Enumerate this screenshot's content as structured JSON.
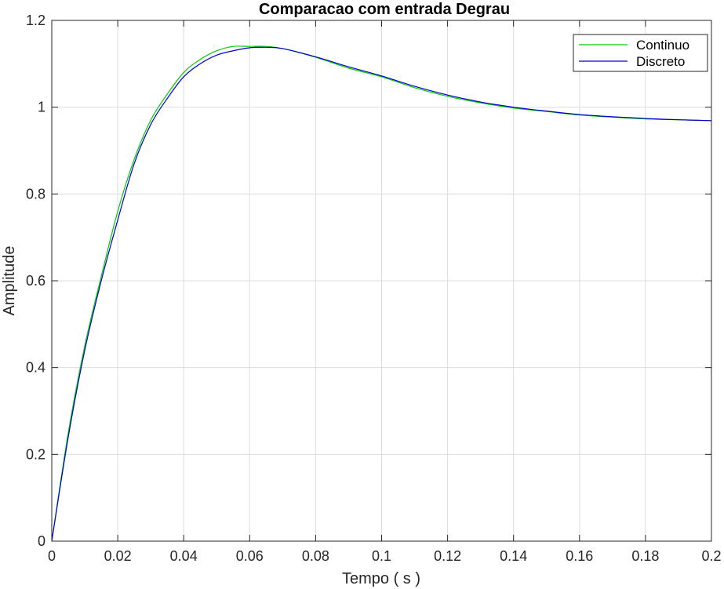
{
  "chart_data": {
    "type": "line",
    "title": "Comparacao com entrada Degrau",
    "xlabel": "Tempo ( s )",
    "ylabel": "Amplitude",
    "xlim": [
      0,
      0.2
    ],
    "ylim": [
      0,
      1.2
    ],
    "grid": true,
    "legend_position": "top-right",
    "xticks": [
      "0",
      "0.02",
      "0.04",
      "0.06",
      "0.08",
      "0.1",
      "0.12",
      "0.14",
      "0.16",
      "0.18",
      "0.2"
    ],
    "yticks": [
      "0",
      "0.2",
      "0.4",
      "0.6",
      "0.8",
      "1",
      "1.2"
    ],
    "x": [
      0,
      0.005,
      0.01,
      0.015,
      0.02,
      0.025,
      0.03,
      0.035,
      0.04,
      0.045,
      0.05,
      0.055,
      0.06,
      0.065,
      0.07,
      0.08,
      0.09,
      0.1,
      0.11,
      0.12,
      0.13,
      0.14,
      0.15,
      0.16,
      0.17,
      0.18,
      0.19,
      0.2
    ],
    "series": [
      {
        "name": "Continuo",
        "color": "#00cc00",
        "values": [
          0,
          0.25,
          0.45,
          0.61,
          0.76,
          0.88,
          0.97,
          1.03,
          1.08,
          1.11,
          1.13,
          1.14,
          1.14,
          1.14,
          1.135,
          1.115,
          1.09,
          1.07,
          1.045,
          1.025,
          1.01,
          0.998,
          0.99,
          0.982,
          0.977,
          0.973,
          0.971,
          0.969
        ]
      },
      {
        "name": "Discreto",
        "color": "#0000cc",
        "values": [
          0,
          0.24,
          0.44,
          0.6,
          0.74,
          0.87,
          0.96,
          1.02,
          1.07,
          1.1,
          1.12,
          1.13,
          1.137,
          1.138,
          1.135,
          1.116,
          1.093,
          1.072,
          1.048,
          1.028,
          1.012,
          1.0,
          0.991,
          0.983,
          0.978,
          0.974,
          0.971,
          0.969
        ]
      }
    ]
  }
}
